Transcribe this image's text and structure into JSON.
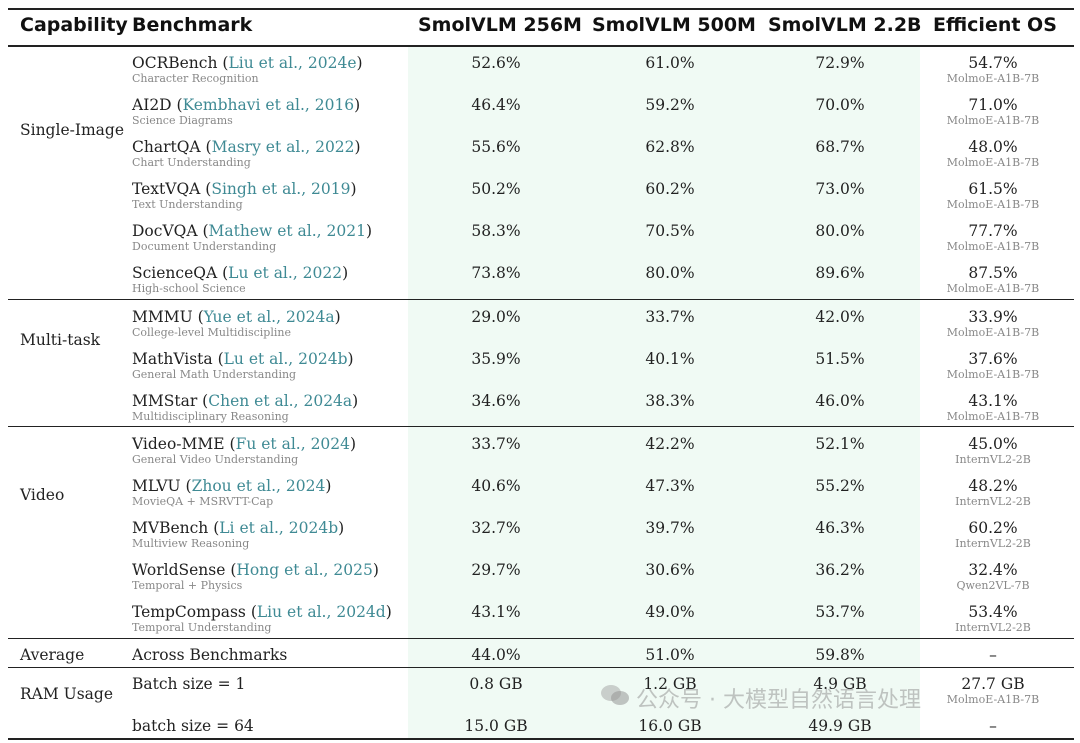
{
  "headers": {
    "capability": "Capability",
    "benchmark": "Benchmark",
    "m256": "SmolVLM 256M",
    "m500": "SmolVLM 500M",
    "m22": "SmolVLM 2.2B",
    "os": "Efficient OS"
  },
  "groups": [
    {
      "label": "Single-Image"
    },
    {
      "label": "Multi-task"
    },
    {
      "label": "Video"
    }
  ],
  "rows": [
    {
      "name": "OCRBench",
      "cite": "Liu et al., 2024e",
      "sub": "Character Recognition",
      "v256": "52.6%",
      "v500": "61.0%",
      "v22": "72.9%",
      "os": "54.7%",
      "os_model": "MolmoE-A1B-7B"
    },
    {
      "name": "AI2D",
      "cite": "Kembhavi et al., 2016",
      "sub": "Science Diagrams",
      "v256": "46.4%",
      "v500": "59.2%",
      "v22": "70.0%",
      "os": "71.0%",
      "os_model": "MolmoE-A1B-7B"
    },
    {
      "name": "ChartQA",
      "cite": "Masry et al., 2022",
      "sub": "Chart Understanding",
      "v256": "55.6%",
      "v500": "62.8%",
      "v22": "68.7%",
      "os": "48.0%",
      "os_model": "MolmoE-A1B-7B"
    },
    {
      "name": "TextVQA",
      "cite": "Singh et al., 2019",
      "sub": "Text Understanding",
      "v256": "50.2%",
      "v500": "60.2%",
      "v22": "73.0%",
      "os": "61.5%",
      "os_model": "MolmoE-A1B-7B"
    },
    {
      "name": "DocVQA",
      "cite": "Mathew et al., 2021",
      "sub": "Document Understanding",
      "v256": "58.3%",
      "v500": "70.5%",
      "v22": "80.0%",
      "os": "77.7%",
      "os_model": "MolmoE-A1B-7B"
    },
    {
      "name": "ScienceQA",
      "cite": "Lu et al., 2022",
      "sub": "High-school Science",
      "v256": "73.8%",
      "v500": "80.0%",
      "v22": "89.6%",
      "os": "87.5%",
      "os_model": "MolmoE-A1B-7B"
    },
    {
      "name": "MMMU",
      "cite": "Yue et al., 2024a",
      "sub": "College-level Multidiscipline",
      "v256": "29.0%",
      "v500": "33.7%",
      "v22": "42.0%",
      "os": "33.9%",
      "os_model": "MolmoE-A1B-7B"
    },
    {
      "name": "MathVista",
      "cite": "Lu et al., 2024b",
      "sub": "General Math Understanding",
      "v256": "35.9%",
      "v500": "40.1%",
      "v22": "51.5%",
      "os": "37.6%",
      "os_model": "MolmoE-A1B-7B"
    },
    {
      "name": "MMStar",
      "cite": "Chen et al., 2024a",
      "sub": "Multidisciplinary Reasoning",
      "v256": "34.6%",
      "v500": "38.3%",
      "v22": "46.0%",
      "os": "43.1%",
      "os_model": "MolmoE-A1B-7B"
    },
    {
      "name": "Video-MME",
      "cite": "Fu et al., 2024",
      "sub": "General Video Understanding",
      "v256": "33.7%",
      "v500": "42.2%",
      "v22": "52.1%",
      "os": "45.0%",
      "os_model": "InternVL2-2B"
    },
    {
      "name": "MLVU",
      "cite": "Zhou et al., 2024",
      "sub": "MovieQA + MSRVTT-Cap",
      "v256": "40.6%",
      "v500": "47.3%",
      "v22": "55.2%",
      "os": "48.2%",
      "os_model": "InternVL2-2B"
    },
    {
      "name": "MVBench",
      "cite": "Li et al., 2024b",
      "sub": "Multiview Reasoning",
      "v256": "32.7%",
      "v500": "39.7%",
      "v22": "46.3%",
      "os": "60.2%",
      "os_model": "InternVL2-2B"
    },
    {
      "name": "WorldSense",
      "cite": "Hong et al., 2025",
      "sub": "Temporal + Physics",
      "v256": "29.7%",
      "v500": "30.6%",
      "v22": "36.2%",
      "os": "32.4%",
      "os_model": "Qwen2VL-7B"
    },
    {
      "name": "TempCompass",
      "cite": "Liu et al., 2024d",
      "sub": "Temporal Understanding",
      "v256": "43.1%",
      "v500": "49.0%",
      "v22": "53.7%",
      "os": "53.4%",
      "os_model": "InternVL2-2B"
    }
  ],
  "average": {
    "cap": "Average",
    "bench": "Across Benchmarks",
    "v256": "44.0%",
    "v500": "51.0%",
    "v22": "59.8%",
    "os": "–"
  },
  "ram": {
    "cap": "RAM Usage",
    "rows": [
      {
        "bench": "Batch size = 1",
        "v256": "0.8 GB",
        "v500": "1.2 GB",
        "v22": "4.9 GB",
        "os": "27.7 GB",
        "os_model": "MolmoE-A1B-7B"
      },
      {
        "bench": "batch size = 64",
        "v256": "15.0 GB",
        "v500": "16.0 GB",
        "v22": "49.9 GB",
        "os": "–"
      }
    ]
  },
  "watermark": "公众号 · 大模型自然语言处理"
}
